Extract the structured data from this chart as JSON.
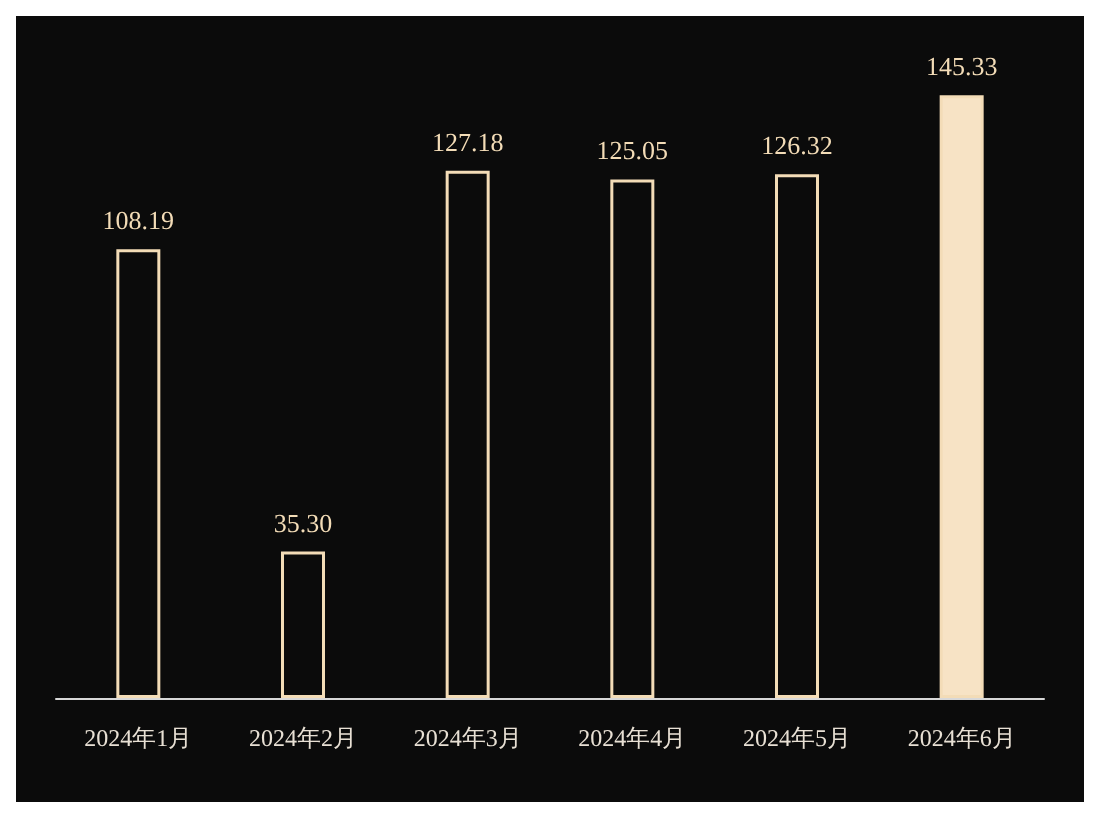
{
  "chart_data": {
    "type": "bar",
    "categories": [
      "2024年1月",
      "2024年2月",
      "2024年3月",
      "2024年4月",
      "2024年5月",
      "2024年6月"
    ],
    "values": [
      108.19,
      35.3,
      127.18,
      125.05,
      126.32,
      145.33
    ],
    "value_labels": [
      "108.19",
      "35.30",
      "127.18",
      "125.05",
      "126.32",
      "145.33"
    ],
    "color": "#f3dcb7",
    "colors": [
      "#0b0b0b",
      "#0b0b0b",
      "#0b0b0b",
      "#0b0b0b",
      "#0b0b0b",
      "#f7e3c5"
    ],
    "grid": false
  }
}
